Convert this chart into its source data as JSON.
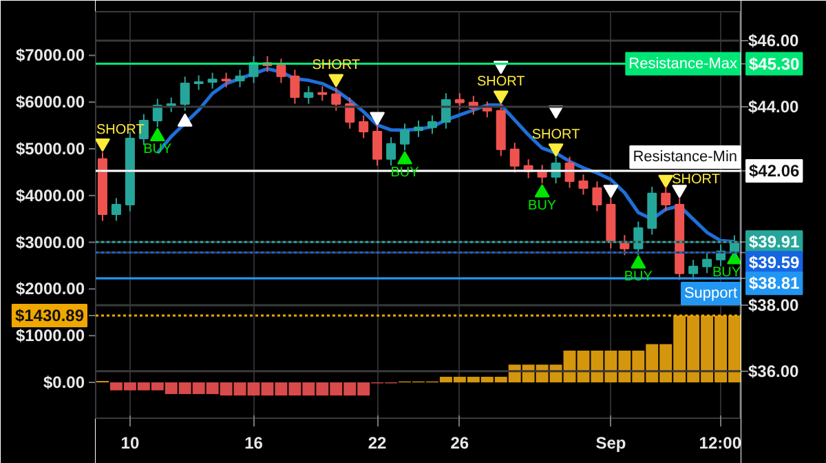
{
  "chart_data": {
    "type": "candlestick",
    "categories": [
      null,
      null,
      "10",
      null,
      null,
      null,
      null,
      null,
      null,
      null,
      null,
      "16",
      null,
      null,
      null,
      null,
      null,
      null,
      null,
      null,
      "22",
      null,
      null,
      null,
      null,
      null,
      "26",
      null,
      null,
      null,
      null,
      null,
      null,
      null,
      null,
      null,
      null,
      "Sep",
      null,
      null,
      null,
      null,
      null,
      null,
      null,
      "12:00",
      null
    ],
    "ylim": [
      -767,
      7935
    ],
    "yticks": [
      {
        "value": 0,
        "label": "$0.00"
      },
      {
        "value": 1000,
        "label": "$1000.00"
      },
      {
        "value": 2000,
        "label": "$2000.00"
      },
      {
        "value": 3000,
        "label": "$3000.00"
      },
      {
        "value": 4000,
        "label": "$4000.00"
      },
      {
        "value": 5000,
        "label": "$5000.00"
      },
      {
        "value": 6000,
        "label": "$6000.00"
      },
      {
        "value": 7000,
        "label": "$7000.00"
      },
      {
        "value": 1430.89,
        "label": "$1430.89"
      }
    ],
    "y2lim": [
      34.58,
      46.875
    ],
    "y2ticks": [
      {
        "value": 36,
        "label": "$36.00"
      },
      {
        "value": 38,
        "label": "$38.00"
      },
      {
        "value": 44,
        "label": "$44.00"
      },
      {
        "value": 46,
        "label": "$46.00"
      },
      {
        "value": 45.3,
        "label": "$45.30"
      },
      {
        "value": 42.06,
        "label": "$42.06"
      },
      {
        "value": 39.91,
        "label": "$39.91"
      },
      {
        "value": 39.59,
        "label": "$39.59"
      },
      {
        "value": 38.81,
        "label": "$38.81"
      }
    ],
    "grid": true,
    "series": [
      {
        "type": "bar",
        "values": [
          30,
          -170,
          -170,
          -170,
          -170,
          -250,
          -250,
          -250,
          -250,
          -280,
          -280,
          -280,
          -280,
          -280,
          -280,
          -280,
          -280,
          -280,
          -280,
          -280,
          -20,
          -20,
          20,
          20,
          20,
          120,
          120,
          120,
          120,
          120,
          380,
          380,
          380,
          380,
          680,
          680,
          680,
          680,
          680,
          680,
          820,
          820,
          1430.89,
          1430.89,
          1430.89,
          1430.89,
          1430.89
        ],
        "colors": [
          "#d4960c",
          "#d94a4a",
          "#d94a4a",
          "#d94a4a",
          "#d94a4a",
          "#d94a4a",
          "#d94a4a",
          "#d94a4a",
          "#d94a4a",
          "#d94a4a",
          "#d94a4a",
          "#d94a4a",
          "#d94a4a",
          "#d94a4a",
          "#d94a4a",
          "#d94a4a",
          "#d94a4a",
          "#d94a4a",
          "#d94a4a",
          "#d94a4a",
          "#d94a4a",
          "#d94a4a",
          "#d4960c",
          "#d4960c",
          "#d4960c",
          "#d4960c",
          "#d4960c",
          "#d4960c",
          "#d4960c",
          "#d4960c",
          "#d4960c",
          "#d4960c",
          "#d4960c",
          "#d4960c",
          "#d4960c",
          "#d4960c",
          "#d4960c",
          "#d4960c",
          "#d4960c",
          "#d4960c",
          "#d4960c",
          "#d4960c",
          "#d4960c",
          "#d4960c",
          "#d4960c",
          "#d4960c",
          "#d4960c"
        ]
      },
      {
        "type": "line",
        "axis": "y2",
        "color": "#1e6fd9",
        "values": [
          null,
          null,
          null,
          null,
          42.6,
          43.1,
          43.5,
          43.9,
          44.4,
          44.7,
          44.85,
          45.0,
          45.15,
          45.05,
          44.85,
          44.8,
          44.7,
          44.5,
          44.2,
          43.85,
          43.45,
          43.3,
          43.29,
          43.32,
          43.4,
          43.6,
          43.75,
          43.9,
          44.05,
          44.05,
          43.6,
          43.15,
          42.75,
          42.6,
          42.35,
          42.15,
          42.0,
          41.8,
          41.4,
          40.8,
          40.6,
          40.9,
          41.0,
          40.6,
          40.2,
          39.95,
          39.92
        ]
      },
      {
        "axis": "y2",
        "ohlc": [
          [
            42.42,
            42.62,
            40.55,
            40.75
          ],
          [
            40.75,
            41.24,
            40.55,
            41.04
          ],
          [
            41.04,
            43.24,
            40.84,
            43.04
          ],
          [
            43.04,
            43.78,
            42.84,
            43.58
          ],
          [
            43.58,
            44.24,
            43.38,
            44.04
          ],
          [
            44.04,
            44.28,
            43.84,
            44.08
          ],
          [
            44.08,
            44.91,
            43.88,
            44.71
          ],
          [
            44.71,
            44.95,
            44.51,
            44.75
          ],
          [
            44.75,
            45.03,
            44.55,
            44.83
          ],
          [
            44.83,
            45.03,
            44.59,
            44.79
          ],
          [
            44.79,
            45.12,
            44.59,
            44.92
          ],
          [
            44.92,
            45.53,
            44.72,
            45.33
          ],
          [
            45.33,
            45.53,
            45.05,
            45.25
          ],
          [
            45.25,
            45.45,
            44.72,
            44.92
          ],
          [
            44.92,
            45.12,
            44.09,
            44.29
          ],
          [
            44.29,
            44.62,
            44.09,
            44.42
          ],
          [
            44.42,
            44.62,
            44.18,
            44.38
          ],
          [
            44.38,
            44.58,
            43.88,
            44.08
          ],
          [
            44.08,
            44.28,
            43.34,
            43.54
          ],
          [
            43.54,
            43.74,
            43.05,
            43.25
          ],
          [
            43.25,
            43.45,
            42.22,
            42.42
          ],
          [
            42.42,
            43.08,
            42.22,
            42.88
          ],
          [
            42.88,
            43.49,
            42.68,
            43.29
          ],
          [
            43.29,
            43.58,
            43.09,
            43.38
          ],
          [
            43.38,
            43.74,
            43.18,
            43.54
          ],
          [
            43.54,
            44.41,
            43.34,
            44.21
          ],
          [
            44.21,
            44.41,
            43.93,
            44.13
          ],
          [
            44.13,
            44.33,
            43.76,
            43.96
          ],
          [
            43.96,
            44.16,
            43.68,
            43.88
          ],
          [
            43.88,
            44.08,
            42.51,
            42.71
          ],
          [
            42.71,
            42.91,
            42.01,
            42.21
          ],
          [
            42.21,
            42.41,
            41.84,
            42.04
          ],
          [
            42.04,
            42.24,
            41.68,
            41.88
          ],
          [
            41.88,
            42.49,
            41.68,
            42.29
          ],
          [
            42.29,
            42.49,
            41.55,
            41.75
          ],
          [
            41.75,
            41.95,
            41.34,
            41.54
          ],
          [
            41.54,
            41.74,
            40.84,
            41.04
          ],
          [
            41.04,
            41.24,
            39.72,
            39.92
          ],
          [
            39.92,
            40.12,
            39.51,
            39.71
          ],
          [
            39.71,
            40.53,
            39.51,
            40.33
          ],
          [
            40.33,
            41.58,
            40.13,
            41.38
          ],
          [
            41.38,
            41.58,
            40.84,
            41.04
          ],
          [
            41.04,
            41.24,
            38.76,
            38.96
          ],
          [
            38.96,
            39.37,
            38.76,
            39.17
          ],
          [
            39.17,
            39.58,
            38.97,
            39.38
          ],
          [
            39.38,
            39.83,
            39.18,
            39.63
          ],
          [
            39.63,
            40.11,
            39.43,
            39.91
          ]
        ],
        "colors": [
          "#ef5350",
          "#26a69a",
          "#26a69a",
          "#26a69a",
          "#26a69a",
          "#26a69a",
          "#26a69a",
          "#26a69a",
          "#26a69a",
          "#ef5350",
          "#26a69a",
          "#26a69a",
          "#ef5350",
          "#ef5350",
          "#ef5350",
          "#26a69a",
          "#ef5350",
          "#ef5350",
          "#ef5350",
          "#ef5350",
          "#ef5350",
          "#26a69a",
          "#26a69a",
          "#26a69a",
          "#26a69a",
          "#26a69a",
          "#ef5350",
          "#ef5350",
          "#ef5350",
          "#ef5350",
          "#ef5350",
          "#ef5350",
          "#ef5350",
          "#26a69a",
          "#ef5350",
          "#ef5350",
          "#ef5350",
          "#ef5350",
          "#ef5350",
          "#26a69a",
          "#26a69a",
          "#ef5350",
          "#ef5350",
          "#26a69a",
          "#26a69a",
          "#26a69a",
          "#26a69a"
        ]
      },
      {
        "type": "scatter",
        "axis": "y2",
        "marker": "triangle",
        "color": "#00e600",
        "values": [
          null,
          null,
          null,
          null,
          43.1,
          null,
          null,
          null,
          null,
          null,
          null,
          null,
          null,
          null,
          null,
          null,
          null,
          null,
          null,
          null,
          null,
          null,
          42.4,
          null,
          null,
          null,
          null,
          null,
          null,
          null,
          null,
          null,
          41.4,
          null,
          null,
          null,
          null,
          null,
          null,
          39.25,
          null,
          null,
          null,
          null,
          null,
          null,
          39.38
        ],
        "value_labels": [
          null,
          null,
          null,
          null,
          "BUY",
          null,
          null,
          null,
          null,
          null,
          null,
          null,
          null,
          null,
          null,
          null,
          null,
          null,
          null,
          null,
          null,
          null,
          "BUY",
          null,
          null,
          null,
          null,
          null,
          null,
          null,
          null,
          null,
          "BUY",
          null,
          null,
          null,
          null,
          null,
          null,
          "BUY",
          null,
          null,
          null,
          null,
          null,
          null,
          "BUY"
        ]
      },
      {
        "type": "scatter",
        "axis": "y2",
        "marker": "triangle_down",
        "color": "#ffeb3b",
        "values": [
          42.9,
          null,
          null,
          null,
          null,
          null,
          null,
          null,
          null,
          null,
          null,
          null,
          null,
          null,
          null,
          null,
          null,
          44.85,
          null,
          null,
          null,
          null,
          null,
          null,
          null,
          null,
          null,
          null,
          null,
          44.35,
          null,
          null,
          null,
          42.75,
          null,
          null,
          null,
          null,
          null,
          null,
          null,
          41.8,
          null,
          null,
          null,
          null,
          null
        ],
        "value_labels": [
          "SHORT",
          null,
          null,
          null,
          null,
          null,
          null,
          null,
          null,
          null,
          null,
          null,
          null,
          null,
          null,
          null,
          null,
          "SHORT",
          null,
          null,
          null,
          null,
          null,
          null,
          null,
          null,
          null,
          null,
          null,
          "SHORT",
          null,
          null,
          null,
          "SHORT",
          null,
          null,
          null,
          null,
          null,
          null,
          null,
          "SHORT",
          null,
          null,
          null,
          null,
          null
        ]
      },
      {
        "type": "scatter",
        "axis": "y2",
        "marker": "triangle_down",
        "color": "#ffffff",
        "values": [
          null,
          null,
          null,
          null,
          null,
          null,
          null,
          null,
          null,
          null,
          null,
          null,
          null,
          null,
          null,
          null,
          null,
          null,
          null,
          null,
          43.7,
          null,
          null,
          null,
          null,
          null,
          null,
          null,
          null,
          45.25,
          null,
          null,
          null,
          43.9,
          null,
          null,
          null,
          41.5,
          null,
          null,
          null,
          null,
          41.5,
          null,
          null,
          null,
          null
        ]
      },
      {
        "type": "scatter",
        "axis": "y2",
        "marker": "triangle",
        "color": "#ffffff",
        "values": [
          null,
          null,
          null,
          null,
          null,
          null,
          43.54,
          null,
          null,
          null,
          null,
          null,
          null,
          null,
          null,
          null,
          null,
          null,
          null,
          null,
          null,
          null,
          null,
          null,
          null,
          null,
          null,
          null,
          null,
          null,
          null,
          null,
          null,
          null,
          null,
          null,
          null,
          null,
          null,
          null,
          null,
          null,
          null,
          null,
          null,
          null,
          null
        ]
      }
    ],
    "ref_lines": [
      {
        "axis": "y2",
        "value": 45.3,
        "label": "Resistance-Max",
        "color": "#00e676"
      },
      {
        "axis": "y2",
        "value": 42.06,
        "label": "Resistance-Min",
        "color": "#ffffff"
      },
      {
        "axis": "y2",
        "value": 38.81,
        "label": "Support",
        "color": "#2196f3"
      },
      {
        "axis": "y2",
        "value": 39.91,
        "color": "#26a69a",
        "line_style": "dotted"
      },
      {
        "axis": "y2",
        "value": 39.59,
        "color": "#1565e0",
        "line_style": "dotted"
      },
      {
        "axis": "y",
        "value": 1430.89,
        "color": "#f0a800",
        "line_style": "dotted"
      }
    ]
  }
}
